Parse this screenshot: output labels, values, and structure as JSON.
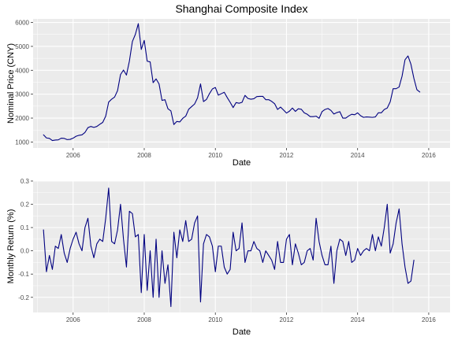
{
  "chart_data": [
    {
      "type": "line",
      "title": "Shanghai Composite Index",
      "xlabel": "Date",
      "ylabel": "Nominal Price (CNY)",
      "color": "#000080",
      "x_start": "2005-03",
      "x_step": "month",
      "xlim": [
        2004.875,
        2016.6
      ],
      "ylim": [
        750,
        6150
      ],
      "x_ticks": [
        2006,
        2008,
        2010,
        2012,
        2014,
        2016
      ],
      "x_tick_labels": [
        "2006",
        "2008",
        "2010",
        "2012",
        "2014",
        "2016"
      ],
      "y_ticks": [
        1000,
        2000,
        3000,
        4000,
        5000,
        6000
      ],
      "y_tick_labels": [
        "1000",
        "2000",
        "3000",
        "4000",
        "5000",
        "6000"
      ],
      "grid": true,
      "values": [
        1300,
        1170,
        1150,
        1060,
        1080,
        1090,
        1160,
        1150,
        1100,
        1110,
        1160,
        1240,
        1280,
        1300,
        1400,
        1600,
        1650,
        1610,
        1650,
        1740,
        1820,
        2080,
        2670,
        2790,
        2880,
        3150,
        3820,
        4010,
        3800,
        4390,
        5200,
        5500,
        5950,
        4870,
        5250,
        4380,
        4350,
        3480,
        3640,
        3430,
        2740,
        2770,
        2390,
        2300,
        1730,
        1860,
        1840,
        1990,
        2080,
        2370,
        2480,
        2590,
        2850,
        3430,
        2690,
        2780,
        3020,
        3220,
        3280,
        2960,
        3020,
        3080,
        2860,
        2660,
        2440,
        2650,
        2620,
        2660,
        2950,
        2820,
        2790,
        2810,
        2900,
        2910,
        2910,
        2770,
        2770,
        2700,
        2600,
        2360,
        2460,
        2340,
        2210,
        2290,
        2420,
        2280,
        2390,
        2370,
        2220,
        2160,
        2060,
        2060,
        2080,
        1990,
        2270,
        2360,
        2400,
        2320,
        2170,
        2230,
        2270,
        2000,
        2000,
        2090,
        2160,
        2140,
        2220,
        2100,
        2030,
        2050,
        2040,
        2030,
        2050,
        2220,
        2220,
        2360,
        2420,
        2680,
        3230,
        3230,
        3300,
        3750,
        4440,
        4600,
        4250,
        3660,
        3190,
        3090
      ]
    },
    {
      "type": "line",
      "title": "",
      "xlabel": "Date",
      "ylabel": "Monthly Return (%)",
      "color": "#000080",
      "x_start": "2005-03",
      "x_step": "month",
      "xlim": [
        2004.875,
        2016.6
      ],
      "ylim": [
        -0.265,
        0.3
      ],
      "x_ticks": [
        2006,
        2008,
        2010,
        2012,
        2014,
        2016
      ],
      "x_tick_labels": [
        "2006",
        "2008",
        "2010",
        "2012",
        "2014",
        "2016"
      ],
      "y_ticks": [
        -0.2,
        -0.1,
        0.0,
        0.1,
        0.2,
        0.3
      ],
      "y_tick_labels": [
        "-0.2",
        "-0.1",
        "0.0",
        "0.1",
        "0.2",
        "0.3"
      ],
      "grid": true,
      "values": [
        0.09,
        -0.09,
        -0.02,
        -0.08,
        0.02,
        0.01,
        0.07,
        -0.01,
        -0.05,
        0.01,
        0.05,
        0.08,
        0.03,
        0.0,
        0.1,
        0.14,
        0.02,
        -0.03,
        0.03,
        0.05,
        0.04,
        0.14,
        0.27,
        0.04,
        0.03,
        0.09,
        0.2,
        0.05,
        -0.07,
        0.17,
        0.16,
        0.06,
        0.07,
        -0.18,
        0.07,
        -0.17,
        0.0,
        -0.2,
        0.05,
        -0.2,
        0.0,
        -0.14,
        -0.06,
        -0.24,
        0.08,
        -0.03,
        0.09,
        0.04,
        0.13,
        0.04,
        0.05,
        0.12,
        0.15,
        -0.22,
        0.03,
        0.07,
        0.06,
        0.02,
        -0.09,
        0.02,
        0.02,
        -0.07,
        -0.1,
        -0.08,
        0.08,
        0.0,
        0.01,
        0.12,
        -0.05,
        0.0,
        0.0,
        0.04,
        0.01,
        0.0,
        -0.05,
        0.0,
        -0.02,
        -0.04,
        -0.08,
        0.04,
        -0.05,
        -0.05,
        0.05,
        0.07,
        -0.06,
        0.03,
        -0.01,
        -0.06,
        -0.05,
        0.0,
        0.01,
        -0.04,
        0.14,
        0.04,
        -0.02,
        -0.06,
        -0.06,
        0.02,
        -0.14,
        0.0,
        0.05,
        0.04,
        -0.02,
        0.04,
        -0.05,
        -0.04,
        0.01,
        -0.02,
        0.0,
        0.01,
        0.0,
        0.07,
        0.0,
        0.06,
        0.02,
        0.1,
        0.2,
        -0.01,
        0.03,
        0.12,
        0.18,
        0.03,
        -0.07,
        -0.14,
        -0.13,
        -0.04
      ]
    }
  ]
}
